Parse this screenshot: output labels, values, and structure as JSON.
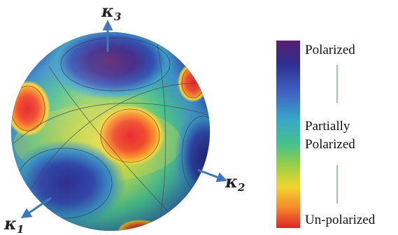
{
  "figure": {
    "axes": {
      "k1": {
        "symbol": "κ",
        "subscript": "1"
      },
      "k2": {
        "symbol": "κ",
        "subscript": "2"
      },
      "k3": {
        "symbol": "κ",
        "subscript": "3"
      }
    },
    "colorbar": {
      "top_label": "Polarized",
      "middle_label_line1": "Partially",
      "middle_label_line2": "Polarized",
      "bottom_label": "Un-polarized",
      "colors": [
        "#5b1f6e",
        "#2e2d8f",
        "#3f63c4",
        "#3aa7c7",
        "#44c18f",
        "#9ccf45",
        "#f1d62e",
        "#f58a2a",
        "#e3242b"
      ]
    }
  }
}
